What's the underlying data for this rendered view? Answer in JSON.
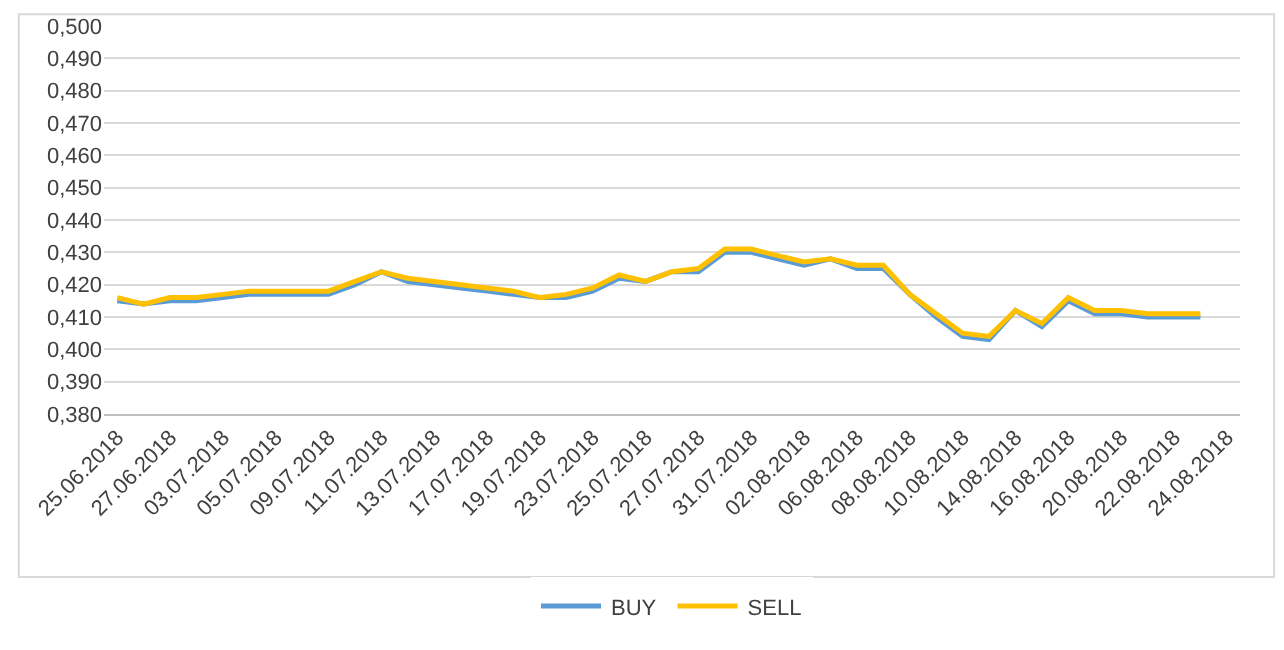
{
  "chart_data": {
    "type": "line",
    "categories": [
      "25.06.2018",
      null,
      "27.06.2018",
      null,
      "03.07.2018",
      null,
      "05.07.2018",
      null,
      "09.07.2018",
      null,
      "11.07.2018",
      null,
      "13.07.2018",
      null,
      "17.07.2018",
      null,
      "19.07.2018",
      null,
      "23.07.2018",
      null,
      "25.07.2018",
      null,
      "27.07.2018",
      null,
      "31.07.2018",
      null,
      "02.08.2018",
      null,
      "06.08.2018",
      null,
      "08.08.2018",
      null,
      "10.08.2018",
      null,
      "14.08.2018",
      null,
      "16.08.2018",
      null,
      "20.08.2018",
      null,
      "22.08.2018",
      null,
      "24.08.2018"
    ],
    "series": [
      {
        "name": "BUY",
        "color": "#5b9bd5",
        "values": [
          0.415,
          0.414,
          0.415,
          0.415,
          0.416,
          0.417,
          0.417,
          0.417,
          0.417,
          0.42,
          0.424,
          0.421,
          0.42,
          0.419,
          0.418,
          0.417,
          0.416,
          0.416,
          0.418,
          0.422,
          0.421,
          0.424,
          0.424,
          0.43,
          0.43,
          0.428,
          0.426,
          0.428,
          0.425,
          0.425,
          0.417,
          0.41,
          0.404,
          0.403,
          0.412,
          0.407,
          0.415,
          0.411,
          0.411,
          0.41,
          0.41,
          0.41,
          null
        ]
      },
      {
        "name": "SELL",
        "color": "#ffc000",
        "values": [
          0.416,
          0.414,
          0.416,
          0.416,
          0.417,
          0.418,
          0.418,
          0.418,
          0.418,
          0.421,
          0.424,
          0.422,
          0.421,
          0.42,
          0.419,
          0.418,
          0.416,
          0.417,
          0.419,
          0.423,
          0.421,
          0.424,
          0.425,
          0.431,
          0.431,
          0.429,
          0.427,
          0.428,
          0.426,
          0.426,
          0.417,
          0.411,
          0.405,
          0.404,
          0.412,
          0.408,
          0.416,
          0.412,
          0.412,
          0.411,
          0.411,
          0.411,
          null
        ]
      }
    ],
    "ylim": [
      0.38,
      0.5
    ],
    "yticks": [
      {
        "value": 0.38,
        "label": "0,380"
      },
      {
        "value": 0.39,
        "label": "0,390"
      },
      {
        "value": 0.4,
        "label": "0,400"
      },
      {
        "value": 0.41,
        "label": "0,410"
      },
      {
        "value": 0.42,
        "label": "0,420"
      },
      {
        "value": 0.43,
        "label": "0,430"
      },
      {
        "value": 0.44,
        "label": "0,440"
      },
      {
        "value": 0.45,
        "label": "0,450"
      },
      {
        "value": 0.46,
        "label": "0,460"
      },
      {
        "value": 0.47,
        "label": "0,470"
      },
      {
        "value": 0.48,
        "label": "0,480"
      },
      {
        "value": 0.49,
        "label": "0,490"
      },
      {
        "value": 0.5,
        "label": "0,500"
      }
    ],
    "grid": "y",
    "legend": "bottom",
    "marker": "none",
    "line_style": "solid"
  }
}
